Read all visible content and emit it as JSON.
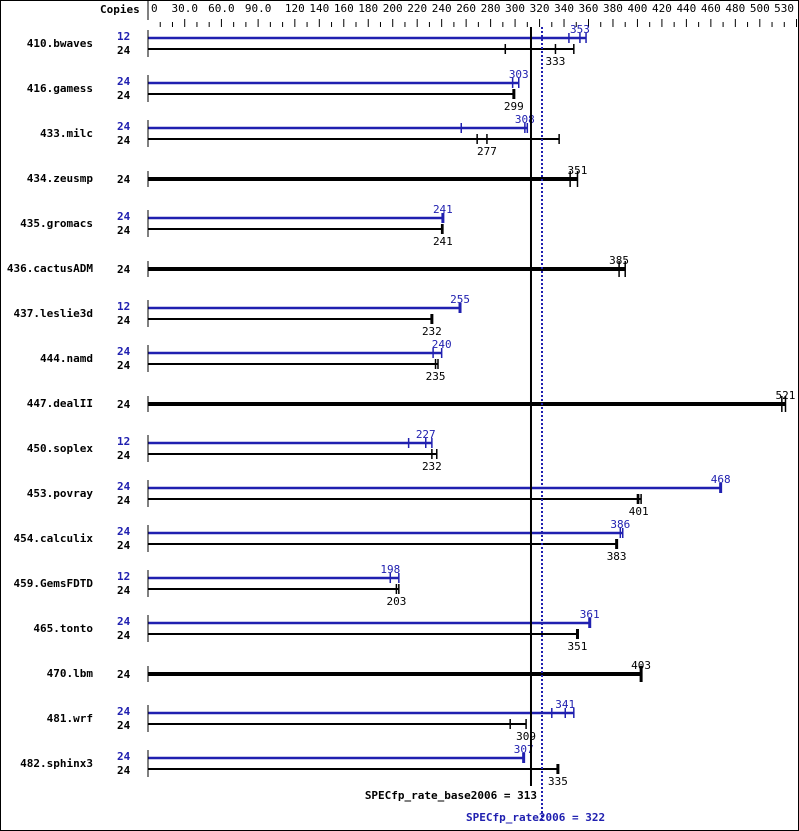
{
  "chart_data": {
    "type": "bar",
    "orientation": "horizontal",
    "copies_header": "Copies",
    "xlim": [
      0,
      530
    ],
    "x_tick_labels": [
      "0",
      "30.0",
      "60.0",
      "90.0",
      "120",
      "140",
      "160",
      "180",
      "200",
      "220",
      "240",
      "260",
      "280",
      "300",
      "320",
      "340",
      "360",
      "380",
      "400",
      "420",
      "440",
      "460",
      "480",
      "500",
      "530"
    ],
    "x_tick_values": [
      0,
      30,
      60,
      90,
      120,
      140,
      160,
      180,
      200,
      220,
      240,
      260,
      280,
      300,
      320,
      340,
      360,
      380,
      400,
      420,
      440,
      460,
      480,
      500,
      530
    ],
    "colors": {
      "base": "#000000",
      "peak": "#2020b0"
    },
    "benchmarks": [
      {
        "name": "410.bwaves",
        "peak": {
          "copies": "12",
          "value": 353,
          "runs": [
            344,
            353,
            358
          ]
        },
        "base": {
          "copies": "24",
          "value": 333,
          "runs": [
            292,
            333,
            348
          ]
        }
      },
      {
        "name": "416.gamess",
        "peak": {
          "copies": "24",
          "value": 303,
          "runs": [
            298,
            303,
            303
          ]
        },
        "base": {
          "copies": "24",
          "value": 299,
          "runs": [
            299,
            299,
            299
          ]
        }
      },
      {
        "name": "433.milc",
        "peak": {
          "copies": "24",
          "value": 308,
          "runs": [
            256,
            308,
            310
          ]
        },
        "base": {
          "copies": "24",
          "value": 277,
          "runs": [
            269,
            277,
            336
          ]
        }
      },
      {
        "name": "434.zeusmp",
        "single": {
          "copies": "24",
          "value": 351,
          "runs": [
            345,
            351,
            351
          ]
        }
      },
      {
        "name": "435.gromacs",
        "peak": {
          "copies": "24",
          "value": 241,
          "runs": [
            241,
            241,
            241
          ]
        },
        "base": {
          "copies": "24",
          "value": 241,
          "runs": [
            240,
            241,
            241
          ]
        }
      },
      {
        "name": "436.cactusADM",
        "single": {
          "copies": "24",
          "value": 385,
          "runs": [
            385,
            385,
            390
          ]
        }
      },
      {
        "name": "437.leslie3d",
        "peak": {
          "copies": "12",
          "value": 255,
          "runs": [
            255,
            255,
            255
          ]
        },
        "base": {
          "copies": "24",
          "value": 232,
          "runs": [
            232,
            232,
            232
          ]
        }
      },
      {
        "name": "444.namd",
        "peak": {
          "copies": "24",
          "value": 240,
          "runs": [
            233,
            240,
            240
          ]
        },
        "base": {
          "copies": "24",
          "value": 235,
          "runs": [
            235,
            235,
            237
          ]
        }
      },
      {
        "name": "447.dealII",
        "single": {
          "copies": "24",
          "value": 521,
          "runs": [
            518,
            521,
            521
          ]
        }
      },
      {
        "name": "450.soplex",
        "peak": {
          "copies": "12",
          "value": 227,
          "runs": [
            213,
            227,
            232
          ]
        },
        "base": {
          "copies": "24",
          "value": 232,
          "runs": [
            232,
            232,
            236
          ]
        }
      },
      {
        "name": "453.povray",
        "peak": {
          "copies": "24",
          "value": 468,
          "runs": [
            468,
            468,
            468
          ]
        },
        "base": {
          "copies": "24",
          "value": 401,
          "runs": [
            400,
            401,
            403
          ]
        }
      },
      {
        "name": "454.calculix",
        "peak": {
          "copies": "24",
          "value": 386,
          "runs": [
            386,
            386,
            388
          ]
        },
        "base": {
          "copies": "24",
          "value": 383,
          "runs": [
            383,
            383,
            383
          ]
        }
      },
      {
        "name": "459.GemsFDTD",
        "peak": {
          "copies": "12",
          "value": 198,
          "runs": [
            198,
            198,
            205
          ]
        },
        "base": {
          "copies": "24",
          "value": 203,
          "runs": [
            203,
            203,
            205
          ]
        }
      },
      {
        "name": "465.tonto",
        "peak": {
          "copies": "24",
          "value": 361,
          "runs": [
            361,
            361,
            361
          ]
        },
        "base": {
          "copies": "24",
          "value": 351,
          "runs": [
            351,
            351,
            351
          ]
        }
      },
      {
        "name": "470.lbm",
        "single": {
          "copies": "24",
          "value": 403,
          "runs": [
            403,
            403,
            403
          ]
        }
      },
      {
        "name": "481.wrf",
        "peak": {
          "copies": "24",
          "value": 341,
          "runs": [
            330,
            341,
            348
          ]
        },
        "base": {
          "copies": "24",
          "value": 309,
          "runs": [
            296,
            309,
            309
          ]
        }
      },
      {
        "name": "482.sphinx3",
        "peak": {
          "copies": "24",
          "value": 307,
          "runs": [
            307,
            307,
            307
          ]
        },
        "base": {
          "copies": "24",
          "value": 335,
          "runs": [
            335,
            335,
            335
          ]
        }
      }
    ],
    "reference_lines": {
      "base": {
        "label": "SPECfp_rate_base2006 = 313",
        "value": 313
      },
      "peak": {
        "label": "SPECfp_rate2006 = 322",
        "value": 322
      }
    }
  }
}
